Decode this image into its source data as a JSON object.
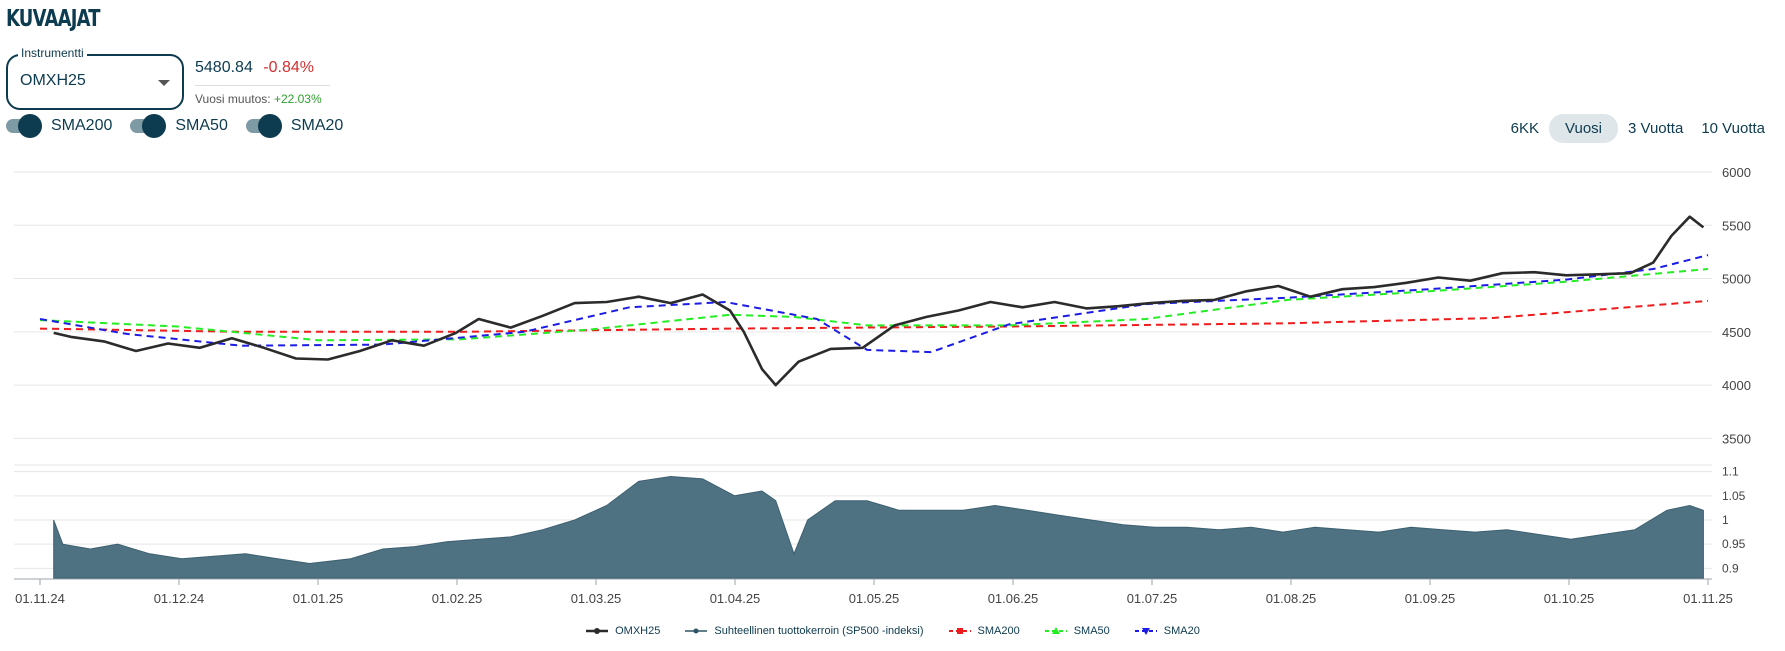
{
  "page": {
    "title": "KUVAAJAT"
  },
  "instrument": {
    "label": "Instrumentti",
    "value": "OMXH25"
  },
  "quote": {
    "price": "5480.84",
    "change": "-0.84%",
    "year_change_label": "Vuosi muutos:",
    "year_change_value": "+22.03%"
  },
  "toggles": [
    {
      "label": "SMA200",
      "on": true
    },
    {
      "label": "SMA50",
      "on": true
    },
    {
      "label": "SMA20",
      "on": true
    }
  ],
  "ranges": [
    {
      "label": "6KK",
      "active": false
    },
    {
      "label": "Vuosi",
      "active": true
    },
    {
      "label": "3 Vuotta",
      "active": false
    },
    {
      "label": "10 Vuotta",
      "active": false
    }
  ],
  "colors": {
    "price": "#2b2b2b",
    "relative": "#4f7283",
    "sma200": "#ee1c1c",
    "sma50": "#22ee22",
    "sma20": "#1c1ce6",
    "grid": "#e6e6e6",
    "text": "#0d3b4f"
  },
  "chart_data": {
    "type": "line",
    "xlim": [
      "2024-11-01",
      "2025-11-01"
    ],
    "x_ticks": [
      "01.11.24",
      "01.12.24",
      "01.01.25",
      "01.02.25",
      "01.03.25",
      "01.04.25",
      "01.05.25",
      "01.06.25",
      "01.07.25",
      "01.08.25",
      "01.09.25",
      "01.10.25",
      "01.11.25"
    ],
    "upper_panel": {
      "ylim": [
        3250,
        6000
      ],
      "y_ticks": [
        3500,
        4000,
        4500,
        5000,
        5500,
        6000
      ],
      "series": [
        {
          "name": "OMXH25",
          "style": "solid",
          "points": [
            [
              "2024-11-04",
              4490
            ],
            [
              "2024-11-08",
              4450
            ],
            [
              "2024-11-15",
              4410
            ],
            [
              "2024-11-22",
              4320
            ],
            [
              "2024-11-29",
              4390
            ],
            [
              "2024-12-06",
              4350
            ],
            [
              "2024-12-13",
              4440
            ],
            [
              "2024-12-20",
              4350
            ],
            [
              "2024-12-27",
              4250
            ],
            [
              "2025-01-03",
              4240
            ],
            [
              "2025-01-10",
              4320
            ],
            [
              "2025-01-17",
              4420
            ],
            [
              "2025-01-24",
              4370
            ],
            [
              "2025-01-31",
              4490
            ],
            [
              "2025-02-05",
              4620
            ],
            [
              "2025-02-12",
              4540
            ],
            [
              "2025-02-19",
              4650
            ],
            [
              "2025-02-26",
              4770
            ],
            [
              "2025-03-05",
              4780
            ],
            [
              "2025-03-12",
              4830
            ],
            [
              "2025-03-19",
              4770
            ],
            [
              "2025-03-26",
              4850
            ],
            [
              "2025-04-01",
              4700
            ],
            [
              "2025-04-04",
              4500
            ],
            [
              "2025-04-08",
              4150
            ],
            [
              "2025-04-11",
              4000
            ],
            [
              "2025-04-16",
              4220
            ],
            [
              "2025-04-23",
              4340
            ],
            [
              "2025-04-30",
              4350
            ],
            [
              "2025-05-07",
              4560
            ],
            [
              "2025-05-14",
              4640
            ],
            [
              "2025-05-21",
              4700
            ],
            [
              "2025-05-28",
              4780
            ],
            [
              "2025-06-04",
              4730
            ],
            [
              "2025-06-11",
              4780
            ],
            [
              "2025-06-18",
              4720
            ],
            [
              "2025-06-25",
              4740
            ],
            [
              "2025-07-02",
              4770
            ],
            [
              "2025-07-09",
              4790
            ],
            [
              "2025-07-16",
              4800
            ],
            [
              "2025-07-23",
              4880
            ],
            [
              "2025-07-30",
              4930
            ],
            [
              "2025-08-06",
              4830
            ],
            [
              "2025-08-13",
              4900
            ],
            [
              "2025-08-20",
              4920
            ],
            [
              "2025-08-27",
              4960
            ],
            [
              "2025-09-03",
              5010
            ],
            [
              "2025-09-10",
              4980
            ],
            [
              "2025-09-17",
              5050
            ],
            [
              "2025-09-24",
              5060
            ],
            [
              "2025-10-01",
              5030
            ],
            [
              "2025-10-08",
              5040
            ],
            [
              "2025-10-15",
              5050
            ],
            [
              "2025-10-20",
              5150
            ],
            [
              "2025-10-24",
              5400
            ],
            [
              "2025-10-28",
              5580
            ],
            [
              "2025-10-31",
              5480
            ]
          ]
        },
        {
          "name": "SMA200",
          "style": "dashed",
          "points": [
            [
              "2024-11-01",
              4530
            ],
            [
              "2024-12-15",
              4500
            ],
            [
              "2025-02-01",
              4500
            ],
            [
              "2025-04-01",
              4530
            ],
            [
              "2025-06-01",
              4550
            ],
            [
              "2025-08-01",
              4580
            ],
            [
              "2025-09-15",
              4630
            ],
            [
              "2025-11-01",
              4790
            ]
          ]
        },
        {
          "name": "SMA50",
          "style": "dashed",
          "points": [
            [
              "2024-11-01",
              4610
            ],
            [
              "2024-12-01",
              4550
            ],
            [
              "2025-01-01",
              4420
            ],
            [
              "2025-02-01",
              4430
            ],
            [
              "2025-03-01",
              4520
            ],
            [
              "2025-04-01",
              4660
            ],
            [
              "2025-04-15",
              4640
            ],
            [
              "2025-05-01",
              4560
            ],
            [
              "2025-06-01",
              4560
            ],
            [
              "2025-07-01",
              4620
            ],
            [
              "2025-08-01",
              4800
            ],
            [
              "2025-09-01",
              4880
            ],
            [
              "2025-10-01",
              4970
            ],
            [
              "2025-11-01",
              5090
            ]
          ]
        },
        {
          "name": "SMA20",
          "style": "dashed",
          "points": [
            [
              "2024-11-01",
              4620
            ],
            [
              "2024-11-20",
              4480
            ],
            [
              "2024-12-15",
              4370
            ],
            [
              "2025-01-15",
              4380
            ],
            [
              "2025-02-15",
              4500
            ],
            [
              "2025-03-10",
              4730
            ],
            [
              "2025-03-31",
              4780
            ],
            [
              "2025-04-20",
              4620
            ],
            [
              "2025-05-01",
              4330
            ],
            [
              "2025-05-15",
              4310
            ],
            [
              "2025-06-01",
              4570
            ],
            [
              "2025-07-01",
              4760
            ],
            [
              "2025-08-01",
              4820
            ],
            [
              "2025-09-01",
              4900
            ],
            [
              "2025-10-01",
              4990
            ],
            [
              "2025-10-20",
              5090
            ],
            [
              "2025-11-01",
              5220
            ]
          ]
        }
      ]
    },
    "lower_panel": {
      "ylim": [
        0.88,
        1.12
      ],
      "y_ticks": [
        0.9,
        0.95,
        1,
        1.05,
        1.1
      ],
      "series": [
        {
          "name": "Suhteellinen tuottokerroin (SP500 -indeksi)",
          "style": "area",
          "points": [
            [
              "2024-11-04",
              1.0
            ],
            [
              "2024-11-06",
              0.95
            ],
            [
              "2024-11-12",
              0.94
            ],
            [
              "2024-11-18",
              0.95
            ],
            [
              "2024-11-25",
              0.93
            ],
            [
              "2024-12-02",
              0.92
            ],
            [
              "2024-12-09",
              0.925
            ],
            [
              "2024-12-16",
              0.93
            ],
            [
              "2024-12-23",
              0.92
            ],
            [
              "2024-12-30",
              0.91
            ],
            [
              "2025-01-08",
              0.92
            ],
            [
              "2025-01-15",
              0.94
            ],
            [
              "2025-01-22",
              0.945
            ],
            [
              "2025-01-29",
              0.955
            ],
            [
              "2025-02-05",
              0.96
            ],
            [
              "2025-02-12",
              0.965
            ],
            [
              "2025-02-19",
              0.98
            ],
            [
              "2025-02-26",
              1.0
            ],
            [
              "2025-03-05",
              1.03
            ],
            [
              "2025-03-12",
              1.08
            ],
            [
              "2025-03-19",
              1.09
            ],
            [
              "2025-03-26",
              1.085
            ],
            [
              "2025-04-02",
              1.05
            ],
            [
              "2025-04-08",
              1.06
            ],
            [
              "2025-04-11",
              1.04
            ],
            [
              "2025-04-15",
              0.93
            ],
            [
              "2025-04-18",
              1.0
            ],
            [
              "2025-04-24",
              1.04
            ],
            [
              "2025-05-01",
              1.04
            ],
            [
              "2025-05-08",
              1.02
            ],
            [
              "2025-05-15",
              1.02
            ],
            [
              "2025-05-22",
              1.02
            ],
            [
              "2025-05-29",
              1.03
            ],
            [
              "2025-06-05",
              1.02
            ],
            [
              "2025-06-12",
              1.01
            ],
            [
              "2025-06-19",
              1.0
            ],
            [
              "2025-06-26",
              0.99
            ],
            [
              "2025-07-03",
              0.985
            ],
            [
              "2025-07-10",
              0.985
            ],
            [
              "2025-07-17",
              0.98
            ],
            [
              "2025-07-24",
              0.985
            ],
            [
              "2025-07-31",
              0.975
            ],
            [
              "2025-08-07",
              0.985
            ],
            [
              "2025-08-14",
              0.98
            ],
            [
              "2025-08-21",
              0.975
            ],
            [
              "2025-08-28",
              0.985
            ],
            [
              "2025-09-04",
              0.98
            ],
            [
              "2025-09-11",
              0.975
            ],
            [
              "2025-09-18",
              0.98
            ],
            [
              "2025-09-25",
              0.97
            ],
            [
              "2025-10-02",
              0.96
            ],
            [
              "2025-10-09",
              0.97
            ],
            [
              "2025-10-16",
              0.98
            ],
            [
              "2025-10-23",
              1.02
            ],
            [
              "2025-10-28",
              1.03
            ],
            [
              "2025-10-31",
              1.02
            ]
          ]
        }
      ]
    },
    "legend": [
      {
        "name": "OMXH25",
        "marker": "solid-dot"
      },
      {
        "name": "Suhteellinen tuottokerroin (SP500 -indeksi)",
        "marker": "solid-dot"
      },
      {
        "name": "SMA200",
        "marker": "dashed-square"
      },
      {
        "name": "SMA50",
        "marker": "dashed-triangle"
      },
      {
        "name": "SMA20",
        "marker": "dashed-triangle-down"
      }
    ],
    "legend_position": "bottom",
    "grid": true
  }
}
